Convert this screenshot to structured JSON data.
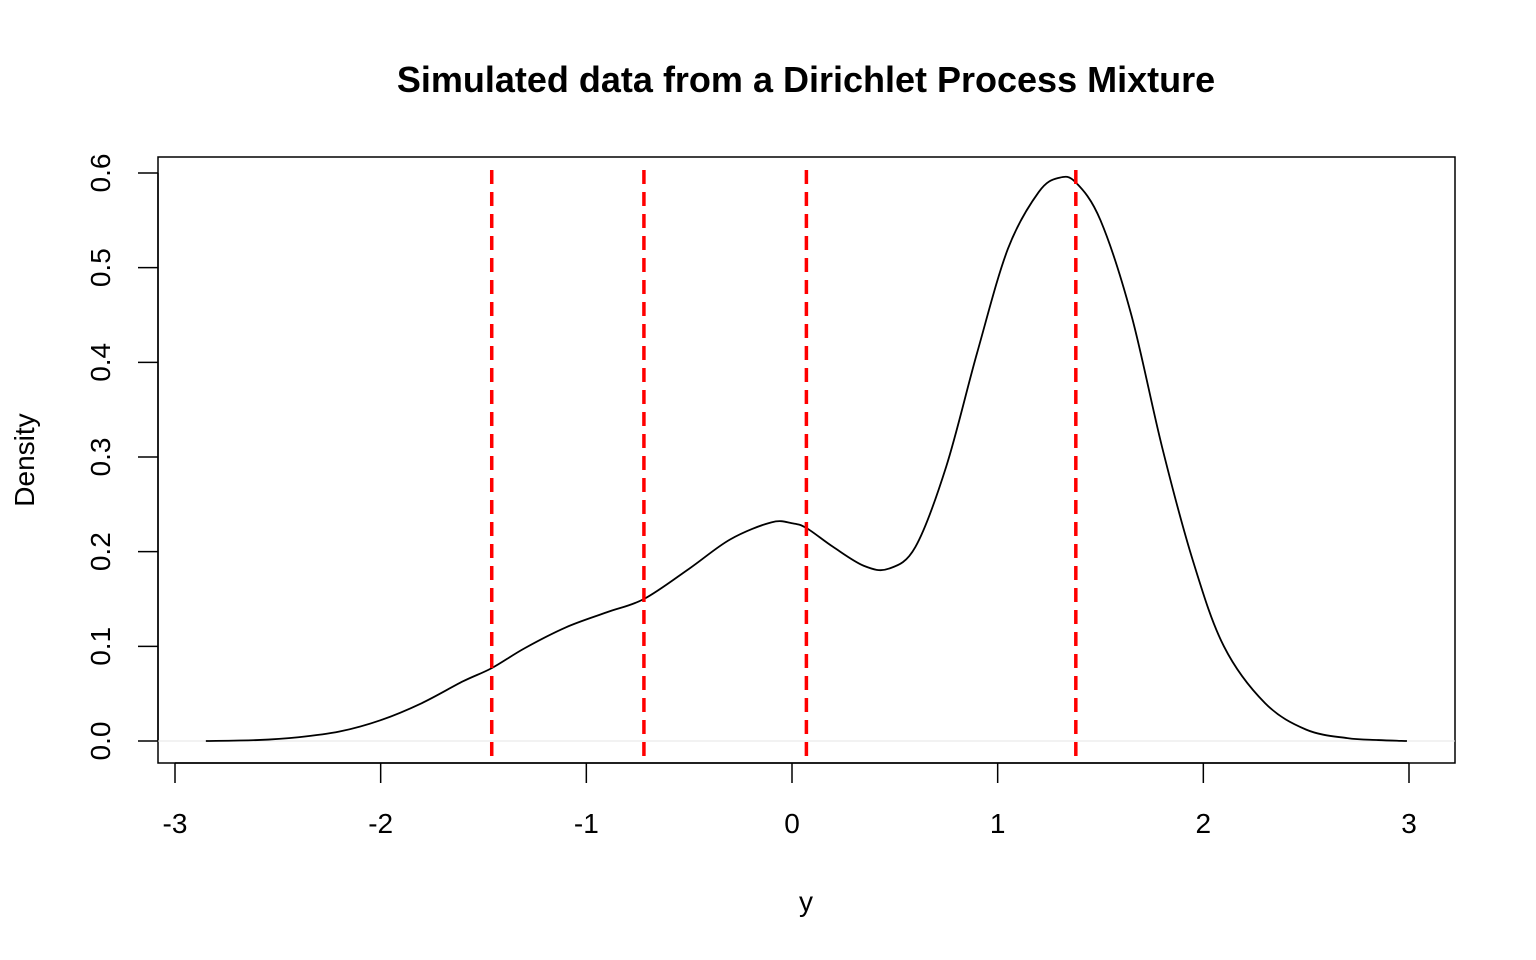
{
  "chart_data": {
    "type": "line",
    "title": "Simulated data from a Dirichlet Process Mixture",
    "xlabel": "y",
    "ylabel": "Density",
    "xlim": [
      -3.0,
      3.0
    ],
    "ylim": [
      0.0,
      0.6
    ],
    "x_ticks": [
      -3,
      -2,
      -1,
      0,
      1,
      2,
      3
    ],
    "y_ticks": [
      0.0,
      0.1,
      0.2,
      0.3,
      0.4,
      0.5,
      0.6
    ],
    "x_tick_labels": [
      "-3",
      "-2",
      "-1",
      "0",
      "1",
      "2",
      "3"
    ],
    "y_tick_labels": [
      "0.0",
      "0.1",
      "0.2",
      "0.3",
      "0.4",
      "0.5",
      "0.6"
    ],
    "grid": false,
    "series": [
      {
        "color": "#000000",
        "x": [
          -2.85,
          -2.6,
          -2.4,
          -2.2,
          -2.0,
          -1.8,
          -1.6,
          -1.46,
          -1.3,
          -1.1,
          -0.9,
          -0.72,
          -0.5,
          -0.3,
          -0.1,
          0.0,
          0.07,
          0.2,
          0.35,
          0.47,
          0.6,
          0.75,
          0.9,
          1.05,
          1.2,
          1.3,
          1.38,
          1.5,
          1.65,
          1.8,
          1.95,
          2.1,
          2.3,
          2.5,
          2.7,
          2.85,
          2.99
        ],
        "y": [
          0.0,
          0.001,
          0.004,
          0.01,
          0.022,
          0.04,
          0.063,
          0.077,
          0.098,
          0.12,
          0.136,
          0.15,
          0.182,
          0.213,
          0.231,
          0.23,
          0.225,
          0.205,
          0.185,
          0.182,
          0.205,
          0.29,
          0.41,
          0.52,
          0.58,
          0.595,
          0.59,
          0.55,
          0.45,
          0.31,
          0.19,
          0.1,
          0.04,
          0.012,
          0.003,
          0.001,
          0.0
        ]
      }
    ],
    "vlines": {
      "color": "#ff0000",
      "style": "dashed",
      "x": [
        -1.46,
        -0.72,
        0.07,
        1.38
      ]
    }
  }
}
